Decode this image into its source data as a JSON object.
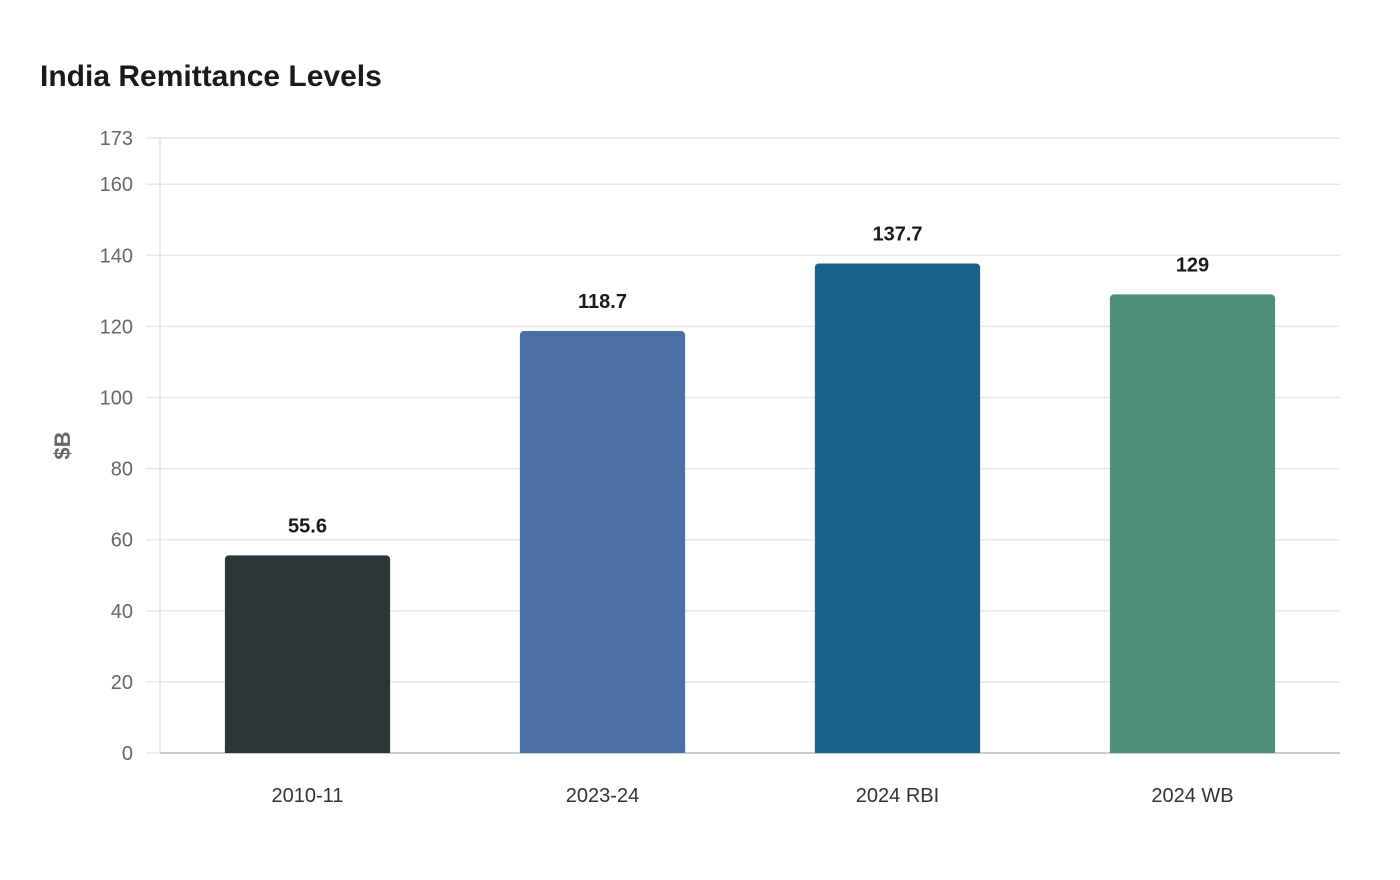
{
  "chart_data": {
    "type": "bar",
    "title": "India Remittance Levels",
    "xlabel": "",
    "ylabel": "$B",
    "categories": [
      "2010-11",
      "2023-24",
      "2024 RBI",
      "2024 WB"
    ],
    "values": [
      55.6,
      118.7,
      137.7,
      129
    ],
    "value_labels": [
      "55.6",
      "118.7",
      "137.7",
      "129"
    ],
    "colors": [
      "#2e3538",
      "#4a6fa3",
      "#196188",
      "#4f8e7b"
    ],
    "ylim": [
      0,
      173
    ],
    "yticks": [
      0,
      20,
      40,
      60,
      80,
      100,
      120,
      140,
      160,
      173
    ],
    "grid": true,
    "legend": "none"
  }
}
